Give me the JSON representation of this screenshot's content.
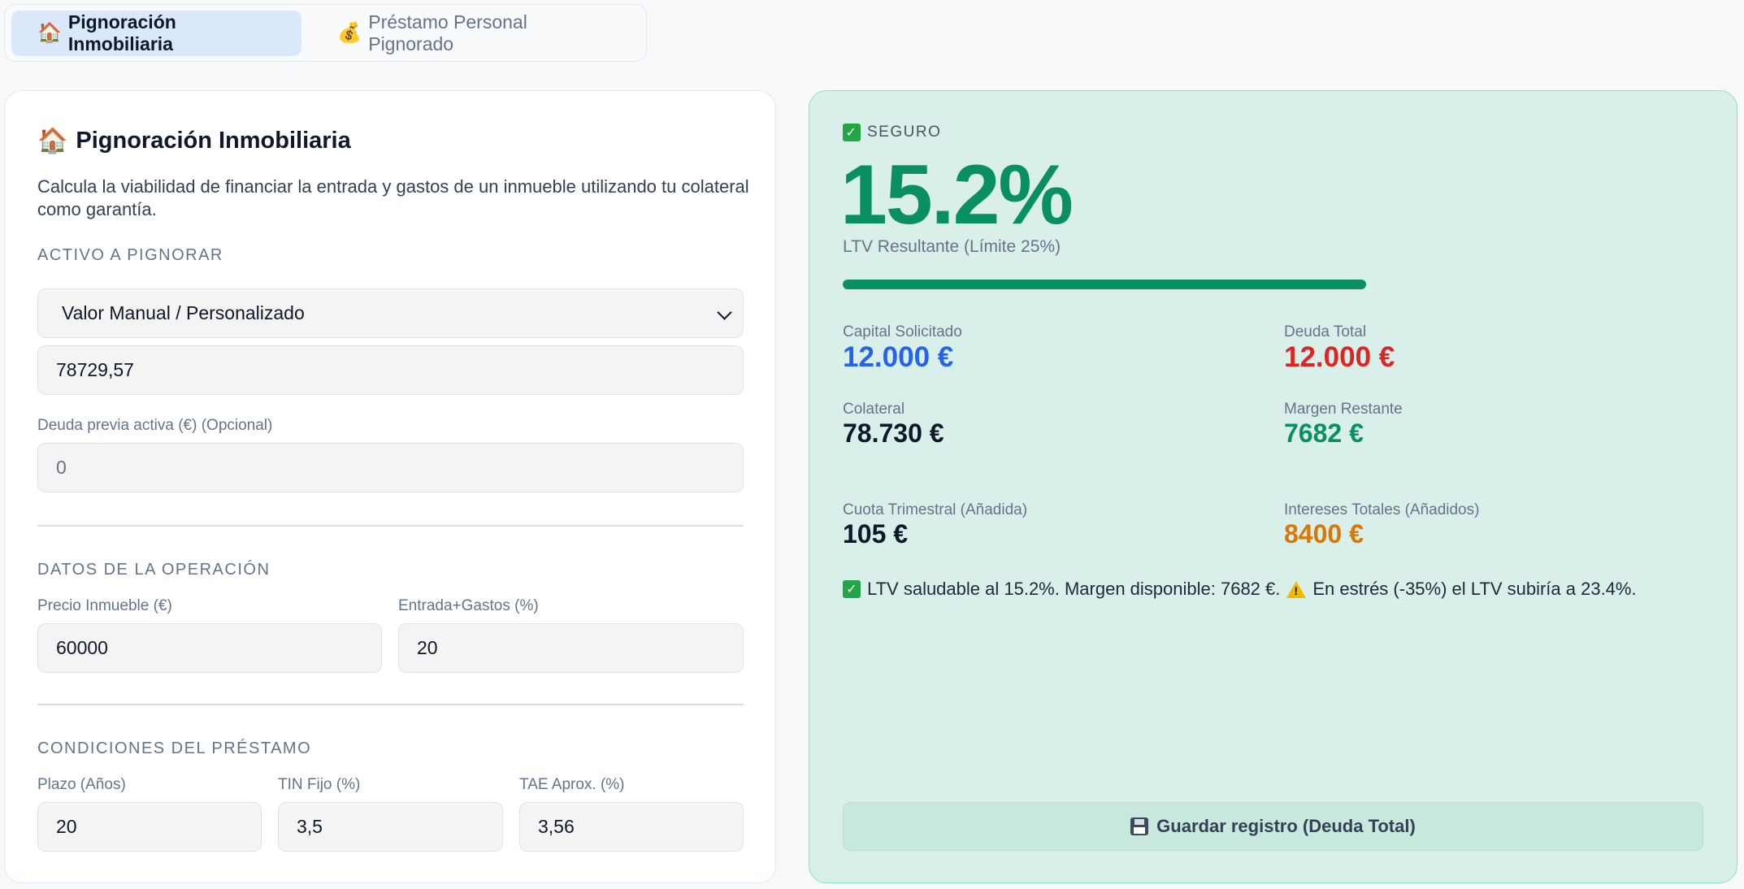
{
  "tabs": [
    {
      "icon": "🏠",
      "label": "Pignoración Inmobiliaria",
      "active": true
    },
    {
      "icon": "💰",
      "label": "Préstamo Personal Pignorado",
      "active": false
    }
  ],
  "form": {
    "title_icon": "🏠",
    "title": "Pignoración Inmobiliaria",
    "description": "Calcula la viabilidad de financiar la entrada y gastos de un inmueble utilizando tu colateral como garantía.",
    "asset_section": "ACTIVO A PIGNORAR",
    "asset_select_value": "Valor Manual / Personalizado",
    "asset_value": "78729,57",
    "prior_debt_label": "Deuda previa activa (€) (Opcional)",
    "prior_debt_placeholder": "0",
    "operation_section": "DATOS DE LA OPERACIÓN",
    "price_label": "Precio Inmueble (€)",
    "price_value": "60000",
    "down_label": "Entrada+Gastos (%)",
    "down_value": "20",
    "loan_section": "CONDICIONES DEL PRÉSTAMO",
    "term_label": "Plazo (Años)",
    "term_value": "20",
    "tin_label": "TIN Fijo (%)",
    "tin_value": "3,5",
    "tae_label": "TAE Aprox. (%)",
    "tae_value": "3,56"
  },
  "result": {
    "status_icon": "check-icon",
    "status": "SEGURO",
    "ltv": "15.2%",
    "ltv_label": "LTV Resultante (Límite 25%)",
    "ltv_progress_percent": 60.8,
    "capital_label": "Capital Solicitado",
    "capital_value": "12.000 €",
    "debt_label": "Deuda Total",
    "debt_value": "12.000 €",
    "collateral_label": "Colateral",
    "collateral_value": "78.730 €",
    "margin_label": "Margen Restante",
    "margin_value": "7682 €",
    "quarterly_label": "Cuota Trimestral (Añadida)",
    "quarterly_value": "105 €",
    "interest_label": "Intereses Totales (Añadidos)",
    "interest_value": "8400 €",
    "summary_part1": "LTV saludable al 15.2%. Margen disponible: 7682 €.",
    "summary_part2": "En estrés (-35%) el LTV subiría a 23.4%.",
    "save_label": "Guardar registro (Deuda Total)"
  },
  "colors": {
    "accent_green": "#0a8f62",
    "blue": "#2563eb",
    "red": "#dc2626",
    "orange": "#d97706"
  }
}
